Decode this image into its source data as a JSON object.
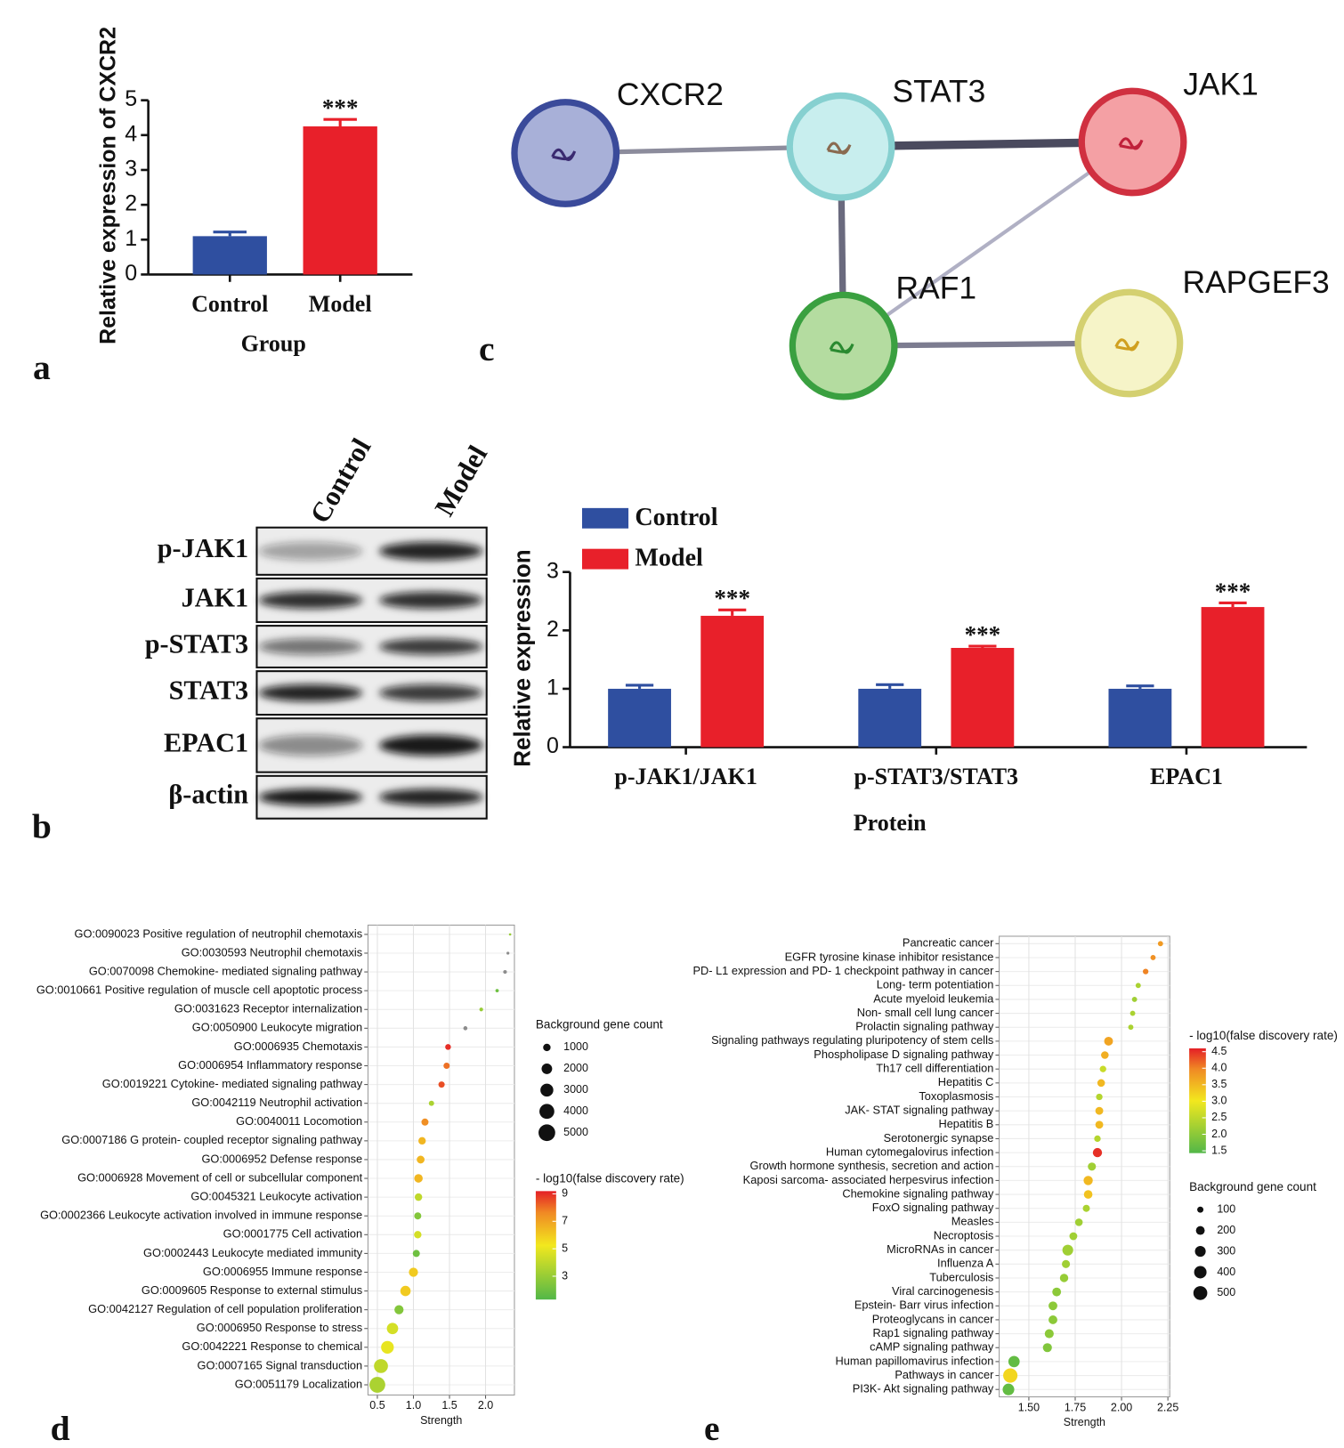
{
  "panel_labels": [
    "a",
    "b",
    "c",
    "d",
    "e"
  ],
  "chart_data": [
    {
      "type": "bar",
      "ylabel": "Relative expression of CXCR2",
      "xlabel": "Group",
      "categories": [
        "Control",
        "Model"
      ],
      "values": [
        1.1,
        4.25
      ],
      "errors": [
        0.12,
        0.2
      ],
      "colors": [
        "#2f4fa0",
        "#e8202a"
      ],
      "annotations": [
        "***"
      ],
      "ylim": [
        0,
        5
      ],
      "yticks": [
        0,
        1,
        2,
        3,
        4,
        5
      ]
    },
    {
      "type": "grouped_bar",
      "ylabel": "Relative expression",
      "xlabel": "Protein",
      "categories": [
        "p-JAK1/JAK1",
        "p-STAT3/STAT3",
        "EPAC1"
      ],
      "series": [
        {
          "name": "Control",
          "color": "#2f4fa0",
          "values": [
            1.0,
            1.0,
            1.0
          ],
          "errors": [
            0.06,
            0.07,
            0.05
          ]
        },
        {
          "name": "Model",
          "color": "#e8202a",
          "values": [
            2.25,
            1.7,
            2.4
          ],
          "errors": [
            0.1,
            0.03,
            0.07
          ]
        }
      ],
      "annotations": [
        "***",
        "***",
        "***"
      ],
      "ylim": [
        0,
        3
      ],
      "yticks": [
        0,
        1,
        2,
        3
      ],
      "legend": "top-left"
    },
    {
      "type": "dot",
      "xlabel": "Strength",
      "categories": [
        "GO:0090023 Positive regulation of neutrophil chemotaxis",
        "GO:0030593 Neutrophil chemotaxis",
        "GO:0070098 Chemokine- mediated signaling pathway",
        "GO:0010661 Positive regulation of muscle cell apoptotic process",
        "GO:0031623 Receptor internalization",
        "GO:0050900 Leukocyte migration",
        "GO:0006935 Chemotaxis",
        "GO:0006954 Inflammatory response",
        "GO:0019221 Cytokine- mediated signaling pathway",
        "GO:0042119 Neutrophil activation",
        "GO:0040011 Locomotion",
        "GO:0007186 G protein- coupled receptor signaling pathway",
        "GO:0006952 Defense response",
        "GO:0006928 Movement of cell or subcellular component",
        "GO:0045321 Leukocyte activation",
        "GO:0002366 Leukocyte activation involved in immune response",
        "GO:0001775 Cell activation",
        "GO:0002443 Leukocyte mediated immunity",
        "GO:0006955 Immune response",
        "GO:0009605 Response to external stimulus",
        "GO:0042127 Regulation of cell population proliferation",
        "GO:0006950 Response to stress",
        "GO:0042221 Response to chemical",
        "GO:0007165 Signal transduction",
        "GO:0051179 Localization"
      ],
      "x": [
        2.34,
        2.31,
        2.27,
        2.16,
        1.94,
        1.72,
        1.48,
        1.46,
        1.39,
        1.25,
        1.16,
        1.12,
        1.1,
        1.07,
        1.07,
        1.06,
        1.06,
        1.04,
        1.0,
        0.89,
        0.8,
        0.71,
        0.64,
        0.55,
        0.5
      ],
      "sizes": [
        100,
        150,
        250,
        200,
        250,
        300,
        600,
        700,
        700,
        500,
        900,
        1000,
        1100,
        1300,
        1000,
        900,
        1000,
        900,
        1500,
        1900,
        1500,
        2300,
        2900,
        3500,
        4500
      ],
      "color_values": [
        3,
        null,
        null,
        2,
        3,
        null,
        9,
        8,
        8.5,
        3.5,
        7.5,
        6.5,
        6.5,
        6.5,
        4,
        2.5,
        4.5,
        2,
        6,
        6,
        2.5,
        4.5,
        5,
        4,
        3.5
      ],
      "xlim": [
        0.37,
        2.4
      ],
      "xticks": [
        0.5,
        {
          "value": 1.0,
          "label": "1.0"
        },
        1.5,
        {
          "value": 2.0,
          "label": "2.0"
        }
      ],
      "grid": true,
      "size_legend": {
        "title": "Background gene count",
        "values": [
          1000,
          2000,
          3000,
          4000,
          5000
        ]
      },
      "color_legend": {
        "title": "- log10(false discovery rate)",
        "lim": [
          1.3,
          9.2
        ],
        "ticks": [
          3,
          5,
          7,
          9
        ]
      }
    },
    {
      "type": "dot",
      "xlabel": "Strength",
      "categories": [
        "Pancreatic cancer",
        "EGFR tyrosine kinase inhibitor resistance",
        "PD- L1 expression and PD- 1 checkpoint pathway in cancer",
        "Long- term potentiation",
        "Acute myeloid leukemia",
        "Non- small cell lung cancer",
        "Prolactin signaling pathway",
        "Signaling pathways regulating pluripotency of stem cells",
        "Phospholipase D signaling pathway",
        "Th17 cell differentiation",
        "Hepatitis C",
        "Toxoplasmosis",
        "JAK- STAT signaling pathway",
        "Hepatitis B",
        "Serotonergic synapse",
        "Human cytomegalovirus infection",
        "Growth hormone synthesis, secretion and action",
        "Kaposi sarcoma- associated herpesvirus infection",
        "Chemokine signaling pathway",
        "FoxO signaling pathway",
        "Measles",
        "Necroptosis",
        "MicroRNAs in cancer",
        "Influenza A",
        "Tuberculosis",
        "Viral carcinogenesis",
        "Epstein- Barr virus infection",
        "Proteoglycans in cancer",
        "Rap1 signaling pathway",
        "cAMP signaling pathway",
        "Human papillomavirus infection",
        "Pathways in cancer",
        "PI3K- Akt signaling pathway"
      ],
      "x": [
        2.21,
        2.17,
        2.13,
        2.09,
        2.07,
        2.06,
        2.05,
        1.93,
        1.91,
        1.9,
        1.89,
        1.88,
        1.88,
        1.88,
        1.87,
        1.87,
        1.84,
        1.82,
        1.82,
        1.81,
        1.77,
        1.74,
        1.71,
        1.7,
        1.69,
        1.65,
        1.63,
        1.63,
        1.61,
        1.6,
        1.42,
        1.4,
        1.39
      ],
      "sizes": [
        70,
        70,
        80,
        70,
        70,
        70,
        70,
        200,
        150,
        110,
        150,
        110,
        160,
        160,
        110,
        220,
        170,
        220,
        190,
        130,
        150,
        160,
        300,
        170,
        180,
        200,
        200,
        200,
        210,
        210,
        330,
        530,
        350
      ],
      "color_values": [
        3.8,
        3.9,
        4.0,
        2.3,
        2.2,
        2.3,
        2.3,
        3.7,
        3.6,
        2.6,
        3.5,
        2.4,
        3.5,
        3.5,
        2.4,
        4.5,
        2.2,
        3.5,
        3.4,
        2.3,
        2.2,
        2.2,
        2.2,
        2.2,
        2.1,
        2.0,
        2.0,
        2.0,
        2.0,
        1.9,
        1.6,
        3.2,
        1.6
      ],
      "xlim": [
        1.34,
        2.26
      ],
      "xticks": [
        {
          "value": 1.5,
          "label": "1.50"
        },
        {
          "value": 1.75,
          "label": "1.75"
        },
        {
          "value": 2.0,
          "label": "2.00"
        },
        {
          "value": 2.25,
          "label": "2.25"
        }
      ],
      "grid": true,
      "size_legend": {
        "title": "Background gene count",
        "values": [
          100,
          200,
          300,
          400,
          500
        ]
      },
      "color_legend": {
        "title": "- log10(false discovery rate)",
        "lim": [
          1.43,
          4.6
        ],
        "ticks": [
          1.5,
          {
            "value": 2.0,
            "label": "2.0"
          },
          2.5,
          {
            "value": 3.0,
            "label": "3.0"
          },
          3.5,
          {
            "value": 4.0,
            "label": "4.0"
          },
          4.5
        ]
      }
    }
  ],
  "network": {
    "nodes": [
      {
        "label": "CXCR2"
      },
      {
        "label": "STAT3"
      },
      {
        "label": "JAK1"
      },
      {
        "label": "RAF1"
      },
      {
        "label": "RAPGEF3"
      }
    ]
  },
  "western_blot": {
    "lanes": [
      "Control",
      "Model"
    ],
    "rows": [
      "p-JAK1",
      "JAK1",
      "p-STAT3",
      "STAT3",
      "EPAC1",
      "β-actin"
    ]
  }
}
